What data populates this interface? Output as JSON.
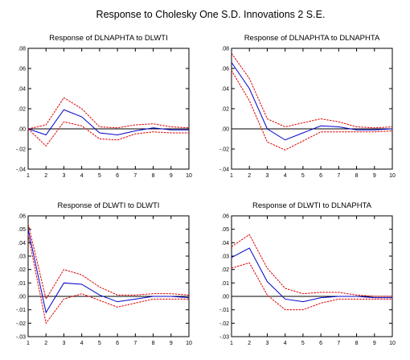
{
  "title": "Response to Cholesky One S.D. Innovations    2 S.E.",
  "colors": {
    "response": "#0000cc",
    "band": "#dd0000",
    "zero": "#000000",
    "frame": "#000000"
  },
  "chart_data": [
    {
      "type": "line",
      "title": "Response of DLNAPHTA to DLWTI",
      "x": [
        1,
        2,
        3,
        4,
        5,
        6,
        7,
        8,
        9,
        10
      ],
      "ylim": [
        -0.04,
        0.08
      ],
      "y_ticks": [
        -0.04,
        -0.02,
        0.0,
        0.02,
        0.04,
        0.06,
        0.08
      ],
      "y_tick_labels": [
        "-.04",
        "-.02",
        ".00",
        ".02",
        ".04",
        ".06",
        ".08"
      ],
      "x_tick_labels": [
        "1",
        "2",
        "3",
        "4",
        "5",
        "6",
        "7",
        "8",
        "9",
        "10"
      ],
      "series": [
        {
          "role": "response",
          "values": [
            0.0,
            -0.006,
            0.019,
            0.012,
            -0.004,
            -0.006,
            -0.002,
            0.001,
            -0.001,
            -0.001
          ]
        },
        {
          "role": "upper",
          "values": [
            0.0,
            0.004,
            0.031,
            0.02,
            0.002,
            0.001,
            0.004,
            0.005,
            0.002,
            0.001
          ]
        },
        {
          "role": "lower",
          "values": [
            0.0,
            -0.017,
            0.007,
            0.003,
            -0.01,
            -0.011,
            -0.005,
            -0.003,
            -0.004,
            -0.004
          ]
        }
      ]
    },
    {
      "type": "line",
      "title": "Response of DLNAPHTA to DLNAPHTA",
      "x": [
        1,
        2,
        3,
        4,
        5,
        6,
        7,
        8,
        9,
        10
      ],
      "ylim": [
        -0.04,
        0.08
      ],
      "y_ticks": [
        -0.04,
        -0.02,
        0.0,
        0.02,
        0.04,
        0.06,
        0.08
      ],
      "y_tick_labels": [
        "-.04",
        "-.02",
        ".00",
        ".02",
        ".04",
        ".06",
        ".08"
      ],
      "x_tick_labels": [
        "1",
        "2",
        "3",
        "4",
        "5",
        "6",
        "7",
        "8",
        "9",
        "10"
      ],
      "series": [
        {
          "role": "response",
          "values": [
            0.066,
            0.04,
            0.0,
            -0.011,
            -0.004,
            0.003,
            0.002,
            -0.001,
            -0.001,
            0.0
          ]
        },
        {
          "role": "upper",
          "values": [
            0.075,
            0.05,
            0.01,
            0.002,
            0.006,
            0.01,
            0.007,
            0.002,
            0.001,
            0.002
          ]
        },
        {
          "role": "lower",
          "values": [
            0.058,
            0.028,
            -0.013,
            -0.021,
            -0.012,
            -0.003,
            -0.003,
            -0.003,
            -0.003,
            -0.002
          ]
        }
      ]
    },
    {
      "type": "line",
      "title": "Response of DLWTI to DLWTI",
      "x": [
        1,
        2,
        3,
        4,
        5,
        6,
        7,
        8,
        9,
        10
      ],
      "ylim": [
        -0.03,
        0.06
      ],
      "y_ticks": [
        -0.03,
        -0.02,
        -0.01,
        0.0,
        0.01,
        0.02,
        0.03,
        0.04,
        0.05,
        0.06
      ],
      "y_tick_labels": [
        "-.03",
        "-.02",
        "-.01",
        ".00",
        ".01",
        ".02",
        ".03",
        ".04",
        ".05",
        ".06"
      ],
      "x_tick_labels": [
        "1",
        "2",
        "3",
        "4",
        "5",
        "6",
        "7",
        "8",
        "9",
        "10"
      ],
      "series": [
        {
          "role": "response",
          "values": [
            0.05,
            -0.012,
            0.01,
            0.009,
            0.001,
            -0.004,
            -0.002,
            0.0,
            0.0,
            -0.001
          ]
        },
        {
          "role": "upper",
          "values": [
            0.054,
            -0.002,
            0.02,
            0.016,
            0.007,
            0.001,
            0.001,
            0.002,
            0.002,
            0.001
          ]
        },
        {
          "role": "lower",
          "values": [
            0.046,
            -0.02,
            -0.002,
            0.002,
            -0.003,
            -0.008,
            -0.005,
            -0.002,
            -0.002,
            -0.002
          ]
        }
      ]
    },
    {
      "type": "line",
      "title": "Response of DLWTI to DLNAPHTA",
      "x": [
        1,
        2,
        3,
        4,
        5,
        6,
        7,
        8,
        9,
        10
      ],
      "ylim": [
        -0.03,
        0.06
      ],
      "y_ticks": [
        -0.03,
        -0.02,
        -0.01,
        0.0,
        0.01,
        0.02,
        0.03,
        0.04,
        0.05,
        0.06
      ],
      "y_tick_labels": [
        "-.03",
        "-.02",
        "-.01",
        ".00",
        ".01",
        ".02",
        ".03",
        ".04",
        ".05",
        ".06"
      ],
      "x_tick_labels": [
        "1",
        "2",
        "3",
        "4",
        "5",
        "6",
        "7",
        "8",
        "9",
        "10"
      ],
      "series": [
        {
          "role": "response",
          "values": [
            0.029,
            0.036,
            0.011,
            -0.002,
            -0.004,
            -0.001,
            0.0,
            0.0,
            -0.001,
            -0.001
          ]
        },
        {
          "role": "upper",
          "values": [
            0.037,
            0.046,
            0.021,
            0.006,
            0.002,
            0.003,
            0.003,
            0.001,
            0.0,
            0.0
          ]
        },
        {
          "role": "lower",
          "values": [
            0.021,
            0.025,
            0.001,
            -0.01,
            -0.01,
            -0.005,
            -0.002,
            -0.002,
            -0.002,
            -0.002
          ]
        }
      ]
    }
  ]
}
